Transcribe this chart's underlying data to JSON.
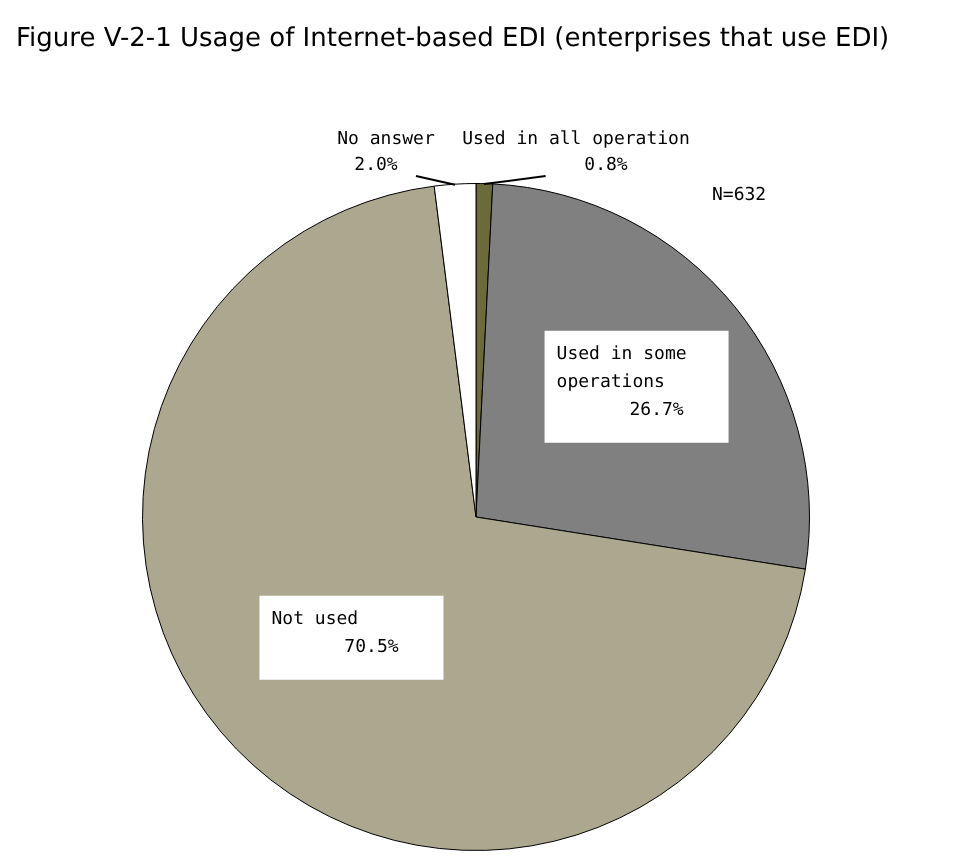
{
  "chart_data": {
    "type": "pie",
    "title": "Figure V-2-1 Usage of Internet-based EDI (enterprises that use EDI)",
    "categories": [
      "Used in all operation",
      "Used in some operations",
      "Not used",
      "No answer"
    ],
    "values": [
      0.8,
      26.7,
      70.5,
      2.0
    ],
    "colors": [
      "#6b6b3a",
      "#808080",
      "#aca890",
      "#ffffff"
    ],
    "value_labels": [
      "0.8%",
      "26.7%",
      "70.5%",
      "2.0%"
    ],
    "annotations": [
      "N=632"
    ],
    "legend": false
  }
}
